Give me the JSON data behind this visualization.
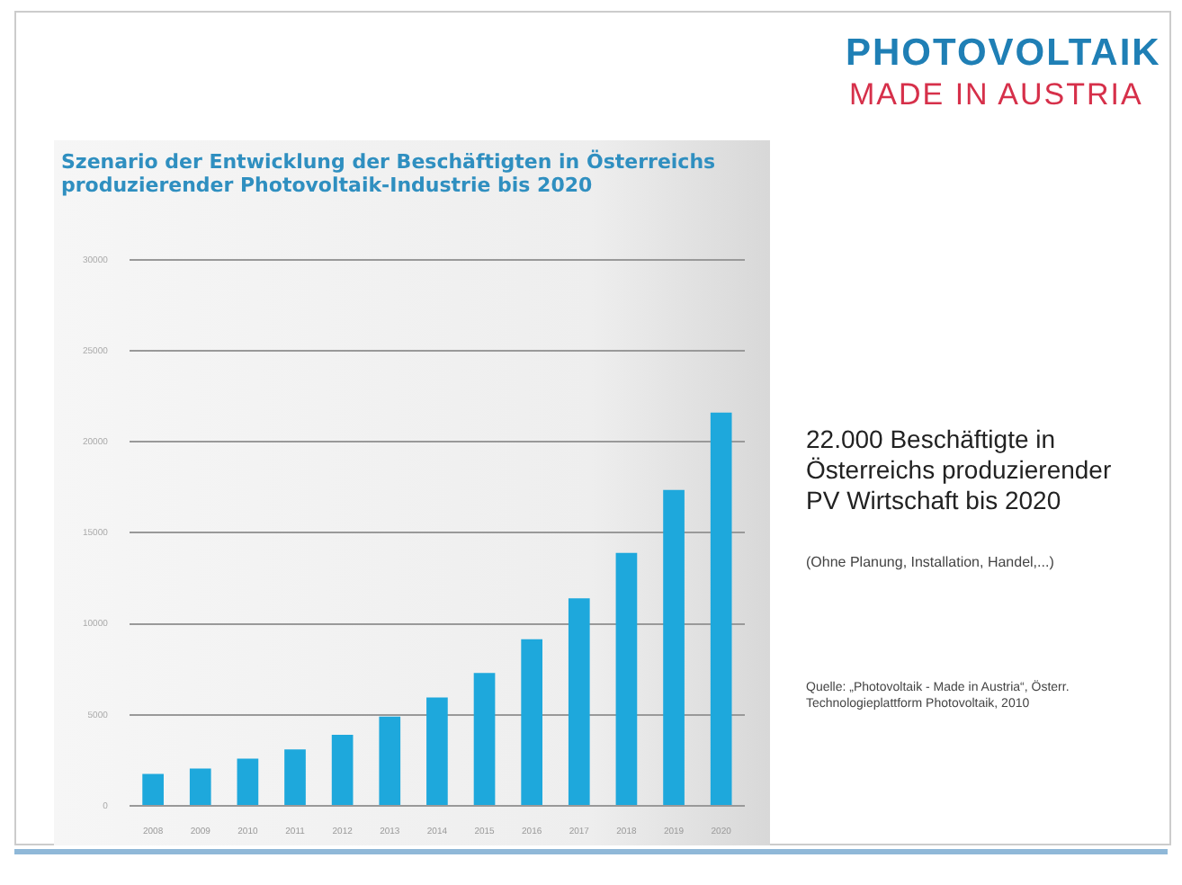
{
  "chart_data": {
    "type": "bar",
    "title": [
      "Szenario der Entwicklung der Beschäftigten in Österreichs",
      "produzierender Photovoltaik-Industrie bis 2020"
    ],
    "categories": [
      "2008",
      "2009",
      "2010",
      "2011",
      "2012",
      "2013",
      "2014",
      "2015",
      "2016",
      "2017",
      "2018",
      "2019",
      "2020"
    ],
    "values": [
      1750,
      2050,
      2600,
      3100,
      3900,
      4900,
      5950,
      7300,
      9150,
      11400,
      13900,
      17350,
      21600
    ],
    "color": "#1ea8dc",
    "ylim": [
      0,
      30000
    ],
    "yticks": [
      0,
      5000,
      10000,
      15000,
      20000,
      25000,
      30000
    ],
    "grid": "y",
    "annotations": [
      "PHOTOVOLTAIK",
      "MADE IN AUSTRIA",
      "22.000 Beschäftigte in Österreichs produzierender PV Wirtschaft bis 2020",
      "(Ohne Planung, Installation, Handel,...)",
      "Quelle: „Photovoltaik - Made in Austria“, Österr. Technologieplattform Photovoltaik, 2010"
    ]
  }
}
